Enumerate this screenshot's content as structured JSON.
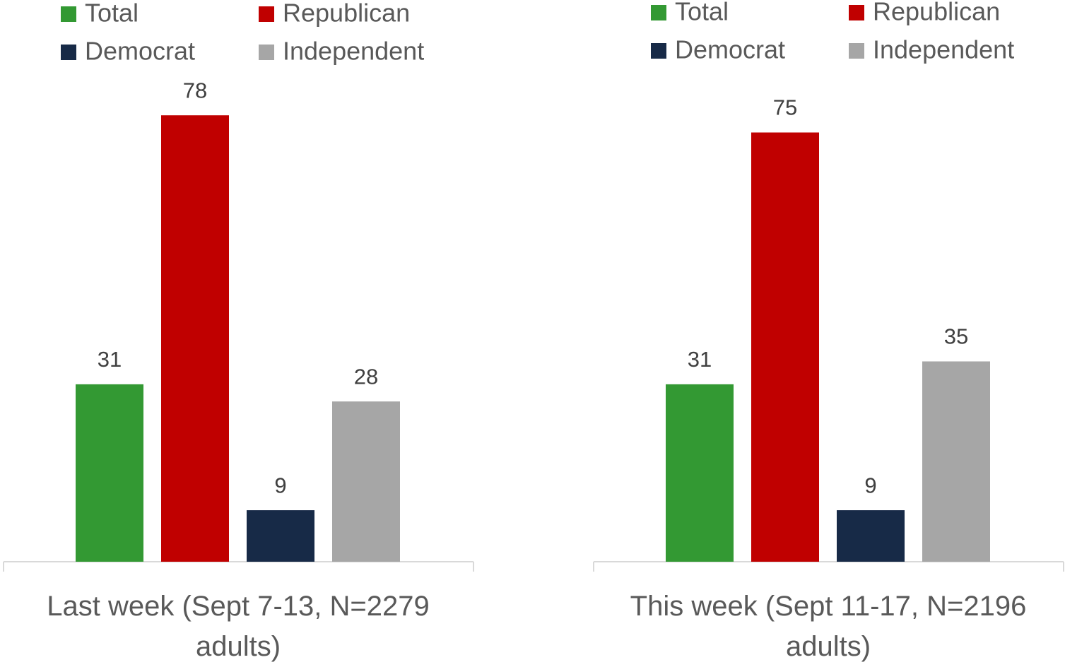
{
  "chart_data": [
    {
      "type": "bar",
      "categories": [
        "Last week (Sept 7-13, N=2279 adults)"
      ],
      "series": [
        {
          "name": "Total",
          "color": "#339933",
          "values": [
            31
          ]
        },
        {
          "name": "Republican",
          "color": "#c00000",
          "values": [
            78
          ]
        },
        {
          "name": "Democrat",
          "color": "#172a47",
          "values": [
            9
          ]
        },
        {
          "name": "Independent",
          "color": "#a6a6a6",
          "values": [
            28
          ]
        }
      ]
    },
    {
      "type": "bar",
      "categories": [
        "This week (Sept 11-17, N=2196 adults)"
      ],
      "series": [
        {
          "name": "Total",
          "color": "#339933",
          "values": [
            31
          ]
        },
        {
          "name": "Republican",
          "color": "#c00000",
          "values": [
            75
          ]
        },
        {
          "name": "Democrat",
          "color": "#172a47",
          "values": [
            9
          ]
        },
        {
          "name": "Independent",
          "color": "#a6a6a6",
          "values": [
            35
          ]
        }
      ]
    }
  ]
}
